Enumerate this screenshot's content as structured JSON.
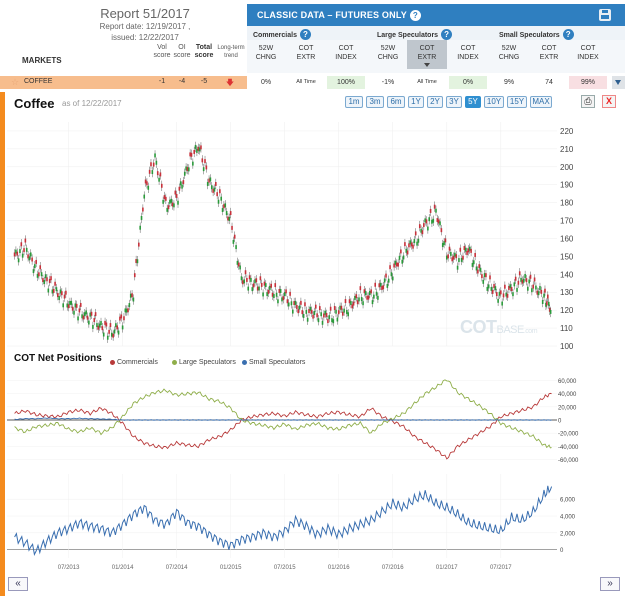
{
  "report": {
    "title": "Report 51/2017",
    "report_date": "Report date: 12/19/2017 ,",
    "issued": "issued: 12/22/2017"
  },
  "table_header": {
    "markets": "MARKETS",
    "vol_score": [
      "Vol",
      "score"
    ],
    "oi_score": [
      "OI",
      "score"
    ],
    "total_score": [
      "Total",
      "score"
    ],
    "long_term": [
      "Long-term",
      "trend"
    ]
  },
  "classic": {
    "title": "CLASSIC DATA – FUTURES ONLY",
    "help": "?",
    "groups": [
      {
        "label": "Commercials"
      },
      {
        "label": "Large Speculators"
      },
      {
        "label": "Small Speculators"
      }
    ],
    "subcols": [
      [
        "52W",
        "CHNG"
      ],
      [
        "COT",
        "EXTR"
      ],
      [
        "COT",
        "INDEX"
      ],
      [
        "52W",
        "CHNG"
      ],
      [
        "COT",
        "EXTR"
      ],
      [
        "COT",
        "INDEX"
      ],
      [
        "52W",
        "CHNG"
      ],
      [
        "COT",
        "EXTR"
      ],
      [
        "COT",
        "INDEX"
      ]
    ]
  },
  "coffee_row": {
    "name": "COFFEE",
    "vol": "-1",
    "oi": "-4",
    "total": "-5",
    "trend_icon": "down-arrow-icon",
    "values": [
      "0%",
      "All Time",
      "100%",
      "-1%",
      "All Time",
      "0%",
      "9%",
      "74",
      "99%"
    ]
  },
  "chart": {
    "title": "Coffee",
    "date_note": "as of 12/22/2017",
    "ranges": [
      "1m",
      "3m",
      "6m",
      "1Y",
      "2Y",
      "3Y",
      "5Y",
      "10Y",
      "15Y",
      "MAX"
    ],
    "active_range": "5Y",
    "net_title": "COT Net Positions",
    "watermark": [
      "COT",
      "BASE",
      ".com"
    ]
  },
  "legend": [
    {
      "name": "Commercials",
      "color": "#b83a3a"
    },
    {
      "name": "Large Speculators",
      "color": "#8fae4a"
    },
    {
      "name": "Small Speculators",
      "color": "#3a6fb0"
    }
  ],
  "chart_data": [
    {
      "type": "line",
      "subtype": "candlestick",
      "series_name": "Coffee price",
      "ylim": [
        100,
        225
      ],
      "y_ticks": [
        100,
        110,
        120,
        130,
        140,
        150,
        160,
        170,
        180,
        190,
        200,
        210,
        220
      ],
      "x_labels": [
        "07/2013",
        "01/2014",
        "07/2014",
        "01/2015",
        "07/2015",
        "01/2016",
        "07/2016",
        "01/2017",
        "07/2017"
      ],
      "x": [
        2013.0,
        2013.1,
        2013.2,
        2013.3,
        2013.4,
        2013.5,
        2013.6,
        2013.7,
        2013.8,
        2013.9,
        2014.0,
        2014.1,
        2014.2,
        2014.3,
        2014.4,
        2014.5,
        2014.6,
        2014.7,
        2014.8,
        2014.9,
        2015.0,
        2015.1,
        2015.2,
        2015.3,
        2015.4,
        2015.5,
        2015.6,
        2015.7,
        2015.8,
        2015.9,
        2016.0,
        2016.1,
        2016.2,
        2016.3,
        2016.4,
        2016.5,
        2016.6,
        2016.7,
        2016.8,
        2016.9,
        2017.0,
        2017.1,
        2017.2,
        2017.3,
        2017.4,
        2017.5,
        2017.6,
        2017.7,
        2017.8,
        2017.9,
        2017.97
      ],
      "values": [
        150,
        155,
        143,
        136,
        130,
        124,
        119,
        116,
        111,
        107,
        114,
        130,
        185,
        205,
        178,
        182,
        200,
        212,
        192,
        183,
        170,
        138,
        135,
        133,
        130,
        128,
        122,
        119,
        118,
        116,
        119,
        122,
        128,
        128,
        133,
        142,
        152,
        158,
        168,
        175,
        152,
        148,
        154,
        142,
        134,
        127,
        132,
        138,
        134,
        128,
        120
      ]
    },
    {
      "type": "line",
      "title": "COT Net Positions",
      "ylim": [
        -70000,
        70000
      ],
      "y_ticks": [
        -60000,
        -40000,
        -20000,
        0,
        20000,
        40000,
        60000
      ],
      "x": [
        2013.0,
        2013.1,
        2013.2,
        2013.3,
        2013.4,
        2013.5,
        2013.6,
        2013.7,
        2013.8,
        2013.9,
        2014.0,
        2014.1,
        2014.2,
        2014.3,
        2014.4,
        2014.5,
        2014.6,
        2014.7,
        2014.8,
        2014.9,
        2015.0,
        2015.1,
        2015.2,
        2015.3,
        2015.4,
        2015.5,
        2015.6,
        2015.7,
        2015.8,
        2015.9,
        2016.0,
        2016.1,
        2016.2,
        2016.3,
        2016.4,
        2016.5,
        2016.6,
        2016.7,
        2016.8,
        2016.9,
        2017.0,
        2017.1,
        2017.2,
        2017.3,
        2017.4,
        2017.5,
        2017.6,
        2017.7,
        2017.8,
        2017.9,
        2017.97
      ],
      "series": [
        {
          "name": "Commercials",
          "values": [
            10000,
            14000,
            8000,
            6000,
            5000,
            12000,
            15000,
            10000,
            18000,
            10000,
            -5000,
            -25000,
            -35000,
            -40000,
            -42000,
            -35000,
            -38000,
            -40000,
            -30000,
            -25000,
            -15000,
            0,
            5000,
            8000,
            10000,
            6000,
            12000,
            8000,
            5000,
            10000,
            12000,
            8000,
            5000,
            18000,
            5000,
            -2000,
            -10000,
            -25000,
            -35000,
            -45000,
            -58000,
            -40000,
            -30000,
            -20000,
            -10000,
            5000,
            10000,
            15000,
            20000,
            35000,
            40000
          ]
        },
        {
          "name": "Large Speculators",
          "values": [
            -12000,
            -18000,
            -10000,
            -8000,
            -5000,
            -14000,
            -18000,
            -12000,
            -20000,
            -12000,
            5000,
            25000,
            35000,
            42000,
            45000,
            38000,
            40000,
            42000,
            32000,
            28000,
            18000,
            0,
            -5000,
            -8000,
            -12000,
            -6000,
            -14000,
            -8000,
            -5000,
            -12000,
            -14000,
            -8000,
            -5000,
            -20000,
            -5000,
            2000,
            10000,
            25000,
            40000,
            50000,
            62000,
            42000,
            32000,
            22000,
            10000,
            -5000,
            -12000,
            -18000,
            -25000,
            -38000,
            -42000
          ]
        },
        {
          "name": "Small Speculators",
          "values": [
            1000,
            2000,
            2000,
            3000,
            2000,
            2000,
            2500,
            2000,
            1500,
            1000,
            0,
            0,
            0,
            0,
            0,
            0,
            0,
            0,
            0,
            0,
            0,
            0,
            0,
            0,
            0,
            0,
            0,
            0,
            0,
            0,
            0,
            0,
            0,
            0,
            0,
            0,
            0,
            0,
            0,
            0,
            0,
            0,
            0,
            0,
            0,
            0,
            0,
            0,
            0,
            0,
            0
          ]
        }
      ]
    },
    {
      "type": "line",
      "series_name": "Small Speculators",
      "ylim": [
        -1000,
        9000
      ],
      "y_ticks": [
        0,
        2000,
        4000,
        6000
      ],
      "x": [
        2013.0,
        2013.1,
        2013.2,
        2013.3,
        2013.4,
        2013.5,
        2013.6,
        2013.7,
        2013.8,
        2013.9,
        2014.0,
        2014.1,
        2014.2,
        2014.3,
        2014.4,
        2014.5,
        2014.6,
        2014.7,
        2014.8,
        2014.9,
        2015.0,
        2015.1,
        2015.2,
        2015.3,
        2015.4,
        2015.5,
        2015.6,
        2015.7,
        2015.8,
        2015.9,
        2016.0,
        2016.1,
        2016.2,
        2016.3,
        2016.4,
        2016.5,
        2016.6,
        2016.7,
        2016.8,
        2016.9,
        2017.0,
        2017.1,
        2017.2,
        2017.3,
        2017.4,
        2017.5,
        2017.6,
        2017.7,
        2017.8,
        2017.9,
        2017.97
      ],
      "values": [
        1500,
        800,
        -200,
        1000,
        2000,
        2500,
        3200,
        2800,
        2500,
        2000,
        3000,
        4200,
        5000,
        3500,
        3000,
        4500,
        3200,
        2800,
        1800,
        1000,
        500,
        1200,
        1500,
        2000,
        1500,
        2200,
        3500,
        2800,
        1800,
        2500,
        1800,
        2500,
        3000,
        3500,
        4500,
        5500,
        5000,
        6000,
        6500,
        5500,
        5000,
        4200,
        3200,
        2800,
        2500,
        2200,
        3800,
        3500,
        4500,
        6500,
        7500
      ]
    }
  ]
}
